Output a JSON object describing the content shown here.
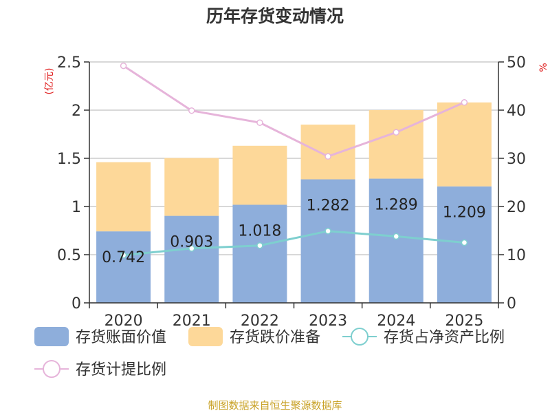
{
  "title": "历年存货变动情况",
  "source": "制图数据来自恒生聚源数据库",
  "colors": {
    "book_value": "#8eaedb",
    "reserve": "#fdd899",
    "net_asset_ratio": "#7ecfcf",
    "provision_ratio": "#e6b4da",
    "unit": "#e02020",
    "source": "#c9a227"
  },
  "chart_data": {
    "type": "bar",
    "stacked": true,
    "title": "历年存货变动情况",
    "categories": [
      "2020",
      "2021",
      "2022",
      "2023",
      "2024",
      "2025"
    ],
    "left_axis": {
      "unit": "(亿元)",
      "range": [
        0,
        2.5
      ],
      "ticks": [
        "0",
        "0.5",
        "1",
        "1.5",
        "2",
        "2.5"
      ]
    },
    "right_axis": {
      "unit": "%",
      "range": [
        0,
        50
      ],
      "ticks": [
        "0",
        "10",
        "20",
        "30",
        "40",
        "50"
      ]
    },
    "series": [
      {
        "name": "存货账面价值",
        "type": "bar",
        "axis": "left",
        "values": [
          0.742,
          0.903,
          1.018,
          1.282,
          1.289,
          1.209
        ],
        "labels": [
          "0.742",
          "0.903",
          "1.018",
          "1.282",
          "1.289",
          "1.209"
        ]
      },
      {
        "name": "存货跌价准备",
        "type": "bar",
        "axis": "left",
        "values": [
          0.718,
          0.6,
          0.612,
          0.568,
          0.711,
          0.871
        ]
      },
      {
        "name": "存货占净资产比例",
        "type": "line",
        "axis": "right",
        "values": [
          9.9,
          11.3,
          11.9,
          14.9,
          13.8,
          12.5
        ]
      },
      {
        "name": "存货计提比例",
        "type": "line",
        "axis": "right",
        "values": [
          49.2,
          39.9,
          37.4,
          30.4,
          35.4,
          41.6
        ]
      }
    ],
    "legend_position": "bottom"
  }
}
